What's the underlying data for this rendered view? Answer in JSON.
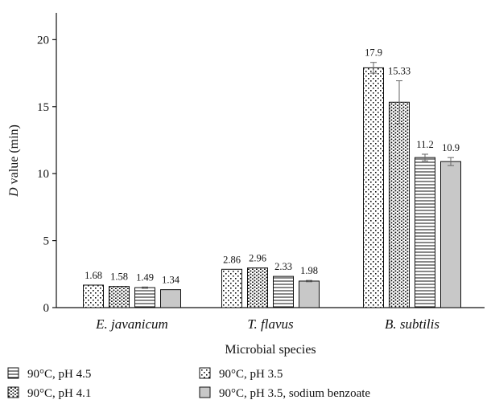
{
  "chart_data": {
    "type": "bar",
    "xlabel": "Microbial species",
    "ylabel_italic": "D",
    "ylabel_rest": " value (min)",
    "ylim": [
      0,
      22
    ],
    "yticks": [
      0,
      5,
      10,
      15,
      20
    ],
    "grid": false,
    "legend_position": "bottom",
    "categories": [
      "E. javanicum",
      "T. flavus",
      "B. subtilis"
    ],
    "series": [
      {
        "name": "90°C, pH 3.5",
        "pattern": "dots-sparse",
        "values": [
          1.68,
          2.86,
          17.9
        ],
        "errors": [
          0.0,
          0.0,
          0.4
        ],
        "labels": [
          "1.68",
          "2.86",
          "17.9"
        ]
      },
      {
        "name": "90°C, pH 4.1",
        "pattern": "dots-dense",
        "values": [
          1.58,
          2.96,
          15.33
        ],
        "errors": [
          0.0,
          0.0,
          1.6
        ],
        "labels": [
          "1.58",
          "2.96",
          "15.33"
        ]
      },
      {
        "name": "90°C, pH 4.5",
        "pattern": "hlines",
        "values": [
          1.49,
          2.33,
          11.2
        ],
        "errors": [
          0.05,
          0.0,
          0.25
        ],
        "labels": [
          "1.49",
          "2.33",
          "11.2"
        ]
      },
      {
        "name": "90°C, pH 3.5, sodium benzoate",
        "pattern": "gray",
        "values": [
          1.34,
          1.98,
          10.9
        ],
        "errors": [
          0.0,
          0.05,
          0.3
        ],
        "labels": [
          "1.34",
          "1.98",
          "10.9"
        ]
      }
    ],
    "legend_order": [
      2,
      0,
      1,
      3
    ],
    "colors": {
      "axis": "#111111",
      "gray_fill": "#c8c8c8",
      "error_bar": "#666666"
    }
  }
}
